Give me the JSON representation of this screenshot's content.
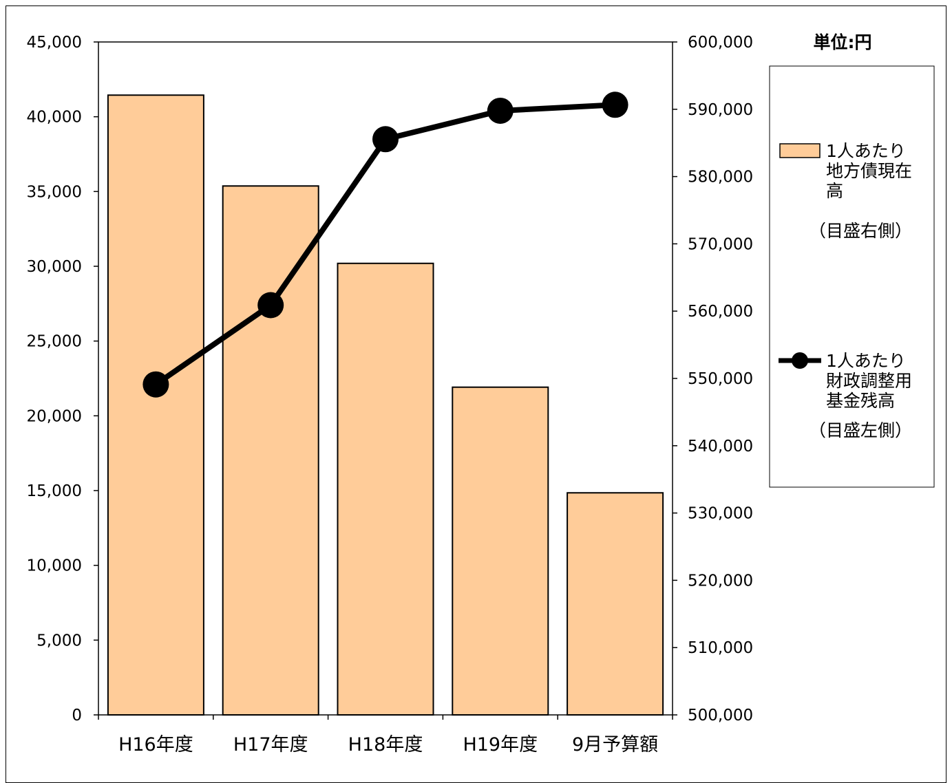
{
  "chart_data": {
    "type": "bar+line",
    "categories": [
      "H16年度",
      "H17年度",
      "H18年度",
      "H19年度",
      "9月予算額"
    ],
    "unit_label": "単位:円",
    "series": [
      {
        "name": "1人あたり地方債現在高",
        "name_lines": [
          "1人あたり",
          "地方債現在",
          "高"
        ],
        "axis_note": "（目盛右側）",
        "type": "bar",
        "axis": "right",
        "values": [
          592100,
          578600,
          567100,
          548700,
          533000
        ],
        "color": "#FFCC99"
      },
      {
        "name": "1人あたり財政調整用基金残高",
        "name_lines": [
          "1人あたり",
          "財政調整用",
          "基金残高"
        ],
        "axis_note": "（目盛左側）",
        "type": "line",
        "axis": "left",
        "values": [
          22100,
          27400,
          38500,
          40400,
          40800
        ],
        "color": "#000000"
      }
    ],
    "y_left": {
      "min": 0,
      "max": 45000,
      "step": 5000,
      "ticks": [
        "0",
        "5,000",
        "10,000",
        "15,000",
        "20,000",
        "25,000",
        "30,000",
        "35,000",
        "40,000",
        "45,000"
      ]
    },
    "y_right": {
      "min": 500000,
      "max": 600000,
      "step": 10000,
      "ticks": [
        "500,000",
        "510,000",
        "520,000",
        "530,000",
        "540,000",
        "550,000",
        "560,000",
        "570,000",
        "580,000",
        "590,000",
        "600,000"
      ]
    },
    "grid": false,
    "legend_position": "right"
  }
}
